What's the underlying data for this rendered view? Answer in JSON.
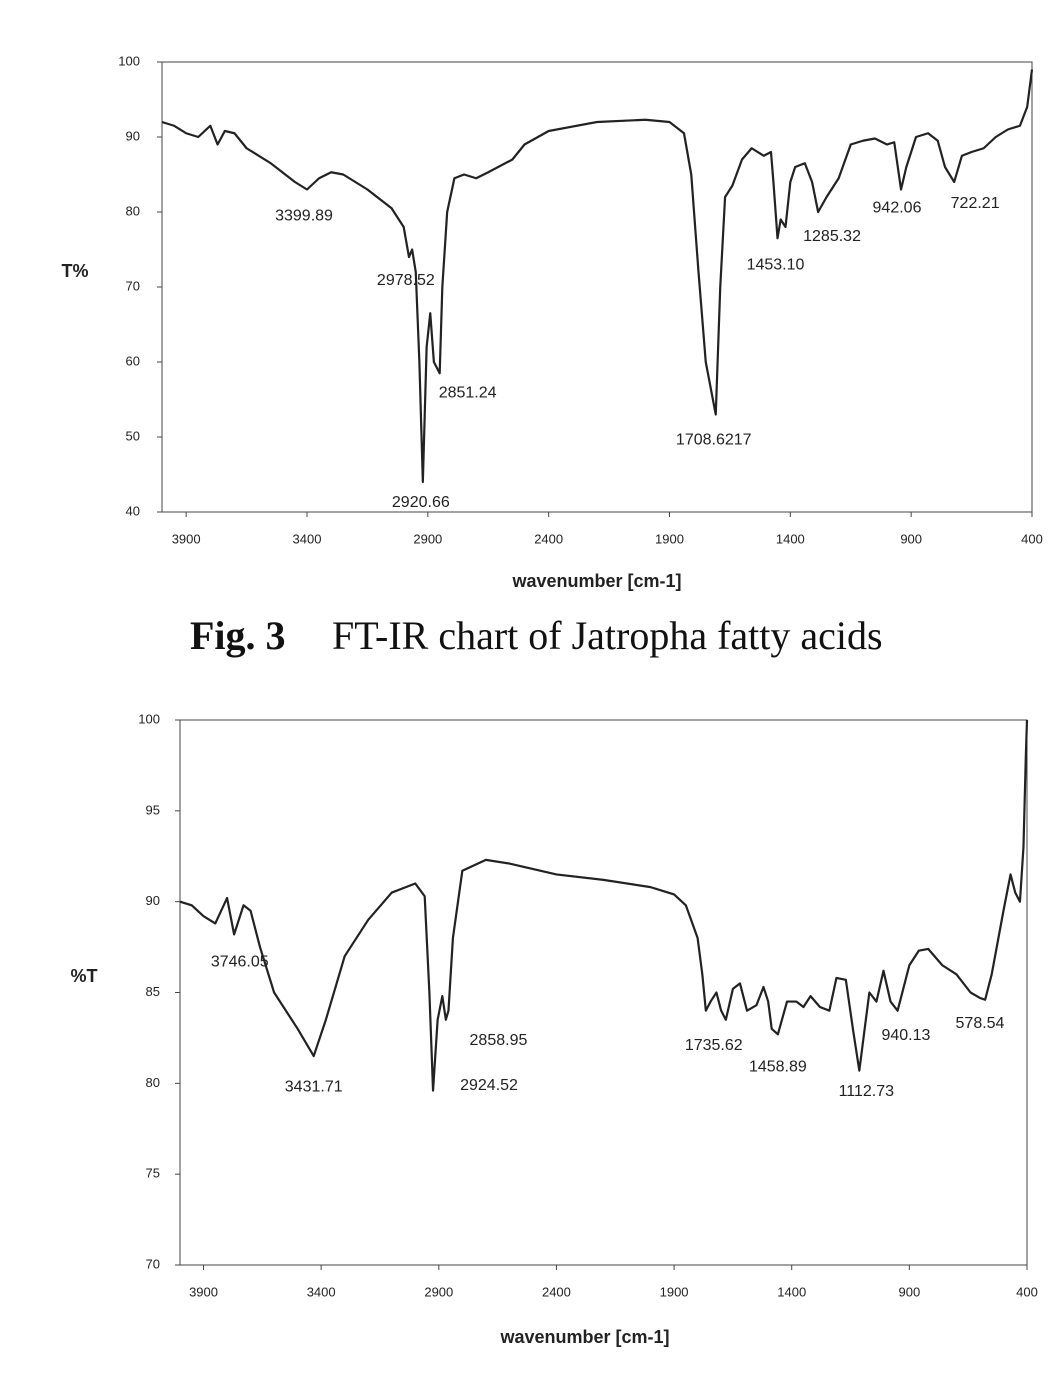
{
  "caption": {
    "label": "Fig. 3",
    "text": "FT-IR chart of Jatropha fatty acids"
  },
  "chart_data": [
    {
      "type": "line",
      "ylabel": "T%",
      "xlabel": "wavenumber [cm-1]",
      "color": "#222222",
      "xlim": [
        4000,
        400
      ],
      "xticks": [
        3900,
        3400,
        2900,
        2400,
        1900,
        1400,
        900,
        400
      ],
      "ylim": [
        40,
        100
      ],
      "yticks": [
        40,
        50,
        60,
        70,
        80,
        90,
        100
      ],
      "x": [
        4000,
        3950,
        3900,
        3850,
        3800,
        3770,
        3740,
        3700,
        3650,
        3550,
        3450,
        3400,
        3350,
        3300,
        3250,
        3150,
        3050,
        3000,
        2978,
        2965,
        2950,
        2935,
        2920.66,
        2905,
        2890,
        2875,
        2851,
        2840,
        2820,
        2790,
        2750,
        2700,
        2650,
        2550,
        2500,
        2400,
        2200,
        2000,
        1900,
        1840,
        1810,
        1780,
        1750,
        1708.62,
        1690,
        1670,
        1640,
        1600,
        1560,
        1510,
        1480,
        1470,
        1453,
        1440,
        1420,
        1400,
        1380,
        1340,
        1310,
        1285,
        1250,
        1200,
        1150,
        1100,
        1050,
        1000,
        970,
        942,
        920,
        880,
        830,
        790,
        760,
        722,
        690,
        650,
        600,
        550,
        500,
        450,
        420,
        400
      ],
      "values": [
        92,
        91.5,
        90.5,
        90,
        91.5,
        89,
        90.8,
        90.5,
        88.5,
        86.5,
        84,
        83,
        84.5,
        85.3,
        85,
        83,
        80.5,
        78,
        74,
        75,
        72,
        60,
        44,
        62,
        66.5,
        60,
        58.5,
        70,
        80,
        84.5,
        85,
        84.5,
        85.3,
        87,
        89,
        90.8,
        92,
        92.3,
        92,
        90.5,
        85,
        72,
        60,
        53,
        70,
        82,
        83.5,
        87,
        88.5,
        87.5,
        88,
        84,
        76.5,
        79,
        78,
        84,
        86,
        86.5,
        84,
        80,
        82,
        84.5,
        89,
        89.5,
        89.8,
        89,
        89.3,
        83,
        86,
        90,
        90.5,
        89.5,
        86,
        84,
        87.5,
        88,
        88.5,
        90,
        91,
        91.5,
        94,
        99
      ],
      "annotations": [
        {
          "x": 3399.89,
          "y": 83,
          "label": "3399.89"
        },
        {
          "x": 2978.52,
          "y": 74,
          "label": "2978.52"
        },
        {
          "x": 2920.66,
          "y": 44,
          "label": "2920.66"
        },
        {
          "x": 2851.24,
          "y": 58.5,
          "label": "2851.24"
        },
        {
          "x": 1708.6217,
          "y": 53,
          "label": "1708.6217"
        },
        {
          "x": 1453.1,
          "y": 76.5,
          "label": "1453.10"
        },
        {
          "x": 1285.32,
          "y": 80,
          "label": "1285.32"
        },
        {
          "x": 942.06,
          "y": 83,
          "label": "942.06"
        },
        {
          "x": 722.21,
          "y": 84,
          "label": "722.21"
        }
      ]
    },
    {
      "type": "line",
      "ylabel": "%T",
      "xlabel": "wavenumber [cm-1]",
      "color": "#222222",
      "xlim": [
        4000,
        400
      ],
      "xticks": [
        3900,
        3400,
        2900,
        2400,
        1900,
        1400,
        900,
        400
      ],
      "ylim": [
        70,
        100
      ],
      "yticks": [
        70,
        75,
        80,
        85,
        90,
        95,
        100
      ],
      "x": [
        4000,
        3950,
        3900,
        3850,
        3800,
        3770,
        3730,
        3700,
        3660,
        3600,
        3500,
        3431.71,
        3380,
        3300,
        3200,
        3100,
        3000,
        2960,
        2940,
        2924.52,
        2905,
        2885,
        2870,
        2858.95,
        2840,
        2800,
        2700,
        2600,
        2400,
        2200,
        2000,
        1900,
        1850,
        1800,
        1780,
        1765,
        1745,
        1720,
        1700,
        1680,
        1650,
        1620,
        1590,
        1550,
        1520,
        1500,
        1485,
        1458.89,
        1420,
        1380,
        1350,
        1320,
        1280,
        1240,
        1210,
        1170,
        1140,
        1112.73,
        1090,
        1070,
        1040,
        1010,
        980,
        950,
        900,
        860,
        820,
        760,
        700,
        640,
        600,
        578,
        550,
        500,
        470,
        450,
        430,
        415,
        405,
        400
      ],
      "values": [
        90,
        89.8,
        89.2,
        88.8,
        90.2,
        88.2,
        89.8,
        89.5,
        87.5,
        85,
        83,
        81.5,
        83.5,
        87,
        89,
        90.5,
        91,
        90.3,
        85,
        79.6,
        83.5,
        84.8,
        83.5,
        84,
        88,
        91.7,
        92.3,
        92.1,
        91.5,
        91.2,
        90.8,
        90.4,
        89.8,
        88,
        86,
        84,
        84.5,
        85,
        84,
        83.5,
        85.2,
        85.5,
        84,
        84.3,
        85.3,
        84.5,
        83,
        82.7,
        84.5,
        84.5,
        84.2,
        84.8,
        84.2,
        84,
        85.8,
        85.7,
        83,
        80.7,
        83,
        85,
        84.5,
        86.2,
        84.5,
        84,
        86.5,
        87.3,
        87.4,
        86.5,
        86,
        85,
        84.7,
        84.6,
        86,
        89.5,
        91.5,
        90.5,
        90,
        93,
        98,
        100
      ],
      "annotations": [
        {
          "x": 3746.05,
          "y": 88.2,
          "label": "3746.05"
        },
        {
          "x": 3431.71,
          "y": 81.5,
          "label": "3431.71"
        },
        {
          "x": 2924.52,
          "y": 79.6,
          "label": "2924.52"
        },
        {
          "x": 2858.95,
          "y": 84,
          "label": "2858.95"
        },
        {
          "x": 1735.62,
          "y": 84,
          "label": "1735.62"
        },
        {
          "x": 1458.89,
          "y": 82.7,
          "label": "1458.89"
        },
        {
          "x": 1112.73,
          "y": 80.7,
          "label": "1112.73"
        },
        {
          "x": 940.13,
          "y": 84,
          "label": "940.13"
        },
        {
          "x": 578.54,
          "y": 84.6,
          "label": "578.54"
        }
      ]
    }
  ]
}
